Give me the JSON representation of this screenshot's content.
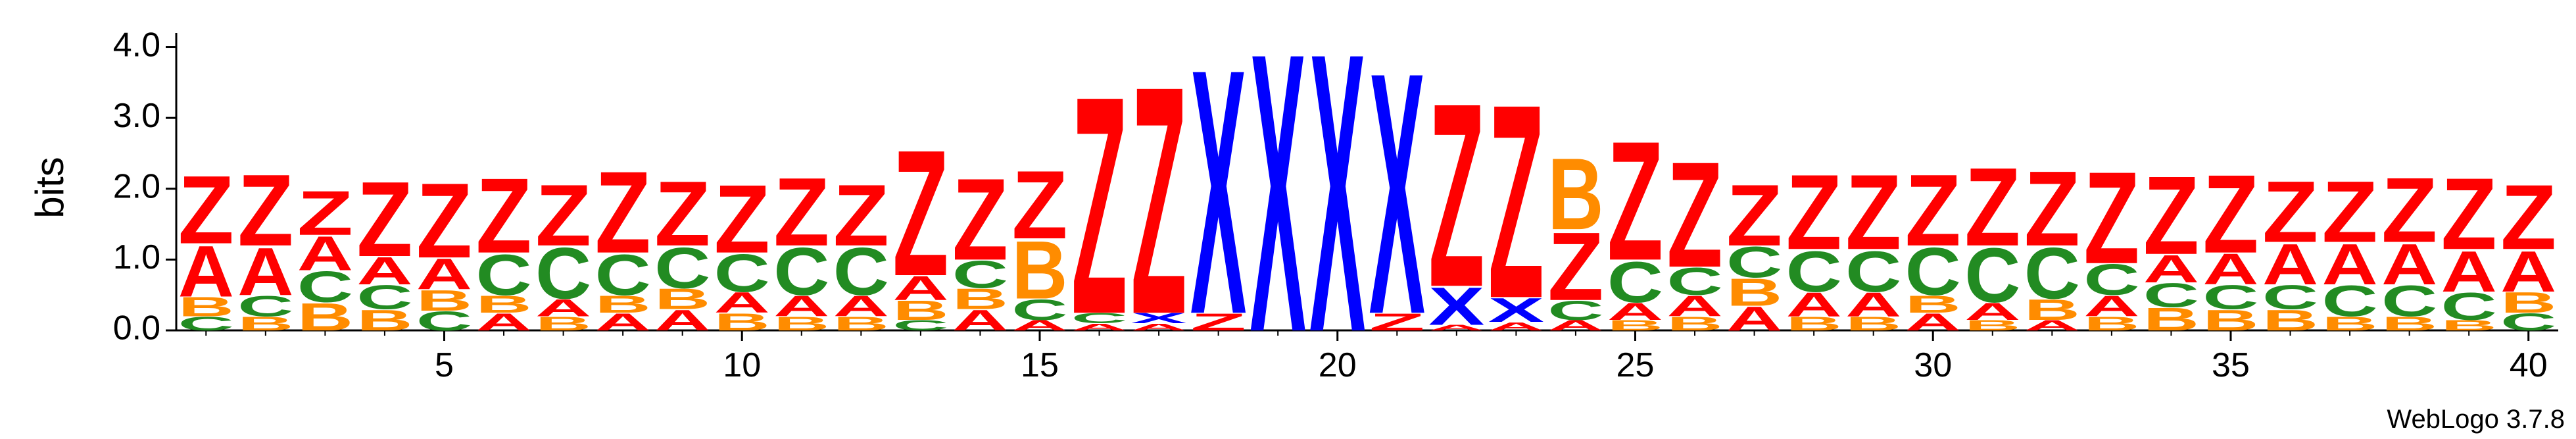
{
  "chart_data": {
    "type": "sequence-logo",
    "ylabel": "bits",
    "credit": "WebLogo 3.7.8",
    "x": [
      1,
      2,
      3,
      4,
      5,
      6,
      7,
      8,
      9,
      10,
      11,
      12,
      13,
      14,
      15,
      16,
      17,
      18,
      19,
      20,
      21,
      22,
      23,
      24,
      25,
      26,
      27,
      28,
      29,
      30,
      31,
      32,
      33,
      34,
      35,
      36,
      37,
      38,
      39,
      40
    ],
    "xlim": [
      0.5,
      40.5
    ],
    "xticks": [
      5,
      10,
      15,
      20,
      25,
      30,
      35,
      40
    ],
    "ylim": [
      0,
      4.2
    ],
    "yticks": [
      {
        "value": 0,
        "label": "0.0"
      },
      {
        "value": 1,
        "label": "1.0"
      },
      {
        "value": 2,
        "label": "2.0"
      },
      {
        "value": 3,
        "label": "3.0"
      },
      {
        "value": 4,
        "label": "4.0"
      }
    ],
    "series": [
      {
        "name": "Z",
        "color": "#ff0000",
        "values": [
          1.0,
          1.05,
          0.65,
          1.1,
          1.1,
          1.1,
          0.9,
          1.2,
          0.95,
          1.0,
          1.0,
          0.9,
          1.85,
          1.2,
          1.0,
          3.2,
          3.35,
          0.25,
          0,
          0,
          0.25,
          2.7,
          2.85,
          1.0,
          1.75,
          1.55,
          0.9,
          1.1,
          1.1,
          1.05,
          1.15,
          1.1,
          1.35,
          1.15,
          1.15,
          0.9,
          0.9,
          0.95,
          1.05,
          0.95
        ]
      },
      {
        "name": "A",
        "color": "#ff0000",
        "values": [
          0.75,
          0.7,
          0.5,
          0.4,
          0.45,
          0.25,
          0.25,
          0.25,
          0.3,
          0.3,
          0.3,
          0.3,
          0.35,
          0.3,
          0.15,
          0.1,
          0.1,
          0,
          0,
          0,
          0,
          0.08,
          0.12,
          0.15,
          0.25,
          0.3,
          0.35,
          0.35,
          0.35,
          0.25,
          0.25,
          0.15,
          0.3,
          0.4,
          0.45,
          0.6,
          0.6,
          0.6,
          0.6,
          0.6
        ]
      },
      {
        "name": "B",
        "color": "#ff8c00",
        "values": [
          0.28,
          0.2,
          0.4,
          0.3,
          0.3,
          0.25,
          0.2,
          0.25,
          0.3,
          0.25,
          0.2,
          0.2,
          0.28,
          0.3,
          0.85,
          0,
          0,
          0,
          0,
          0,
          0,
          0,
          0,
          1.05,
          0.15,
          0.2,
          0.4,
          0.2,
          0.2,
          0.25,
          0.15,
          0.3,
          0.2,
          0.33,
          0.3,
          0.3,
          0.2,
          0.2,
          0.15,
          0.3
        ]
      },
      {
        "name": "C",
        "color": "#228b22",
        "values": [
          0.2,
          0.3,
          0.45,
          0.35,
          0.28,
          0.6,
          0.75,
          0.6,
          0.6,
          0.55,
          0.7,
          0.7,
          0.15,
          0.4,
          0.3,
          0.15,
          0,
          0,
          0,
          0,
          0,
          0,
          0,
          0.28,
          0.6,
          0.4,
          0.45,
          0.6,
          0.6,
          0.7,
          0.8,
          0.75,
          0.45,
          0.35,
          0.35,
          0.35,
          0.45,
          0.45,
          0.4,
          0.25
        ]
      },
      {
        "name": "X",
        "color": "#0000ff",
        "values": [
          0,
          0,
          0,
          0,
          0,
          0,
          0,
          0,
          0,
          0,
          0,
          0,
          0,
          0,
          0,
          0,
          0.15,
          3.6,
          4.1,
          4.1,
          3.55,
          0.55,
          0.35,
          0,
          0,
          0,
          0,
          0,
          0,
          0,
          0,
          0,
          0,
          0,
          0,
          0,
          0,
          0,
          0,
          0
        ]
      }
    ]
  }
}
